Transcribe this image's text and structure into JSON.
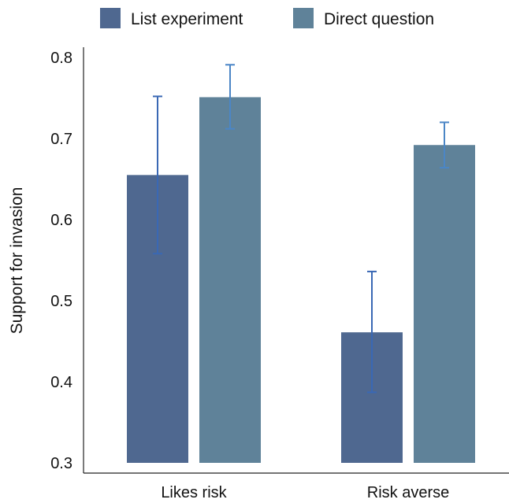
{
  "chart_data": {
    "type": "bar",
    "categories": [
      "Likes risk",
      "Risk averse"
    ],
    "series": [
      {
        "name": "List experiment",
        "color": "#4f6890",
        "values": [
          0.655,
          0.461
        ],
        "error_low": [
          0.558,
          0.387
        ],
        "error_high": [
          0.752,
          0.536
        ]
      },
      {
        "name": "Direct question",
        "color": "#5f8299",
        "values": [
          0.751,
          0.692
        ],
        "error_low": [
          0.712,
          0.664
        ],
        "error_high": [
          0.791,
          0.72
        ]
      }
    ],
    "xlabel": "",
    "ylabel": "Support for invasion",
    "ylim": [
      0.3,
      0.8
    ],
    "yticks": [
      0.3,
      0.4,
      0.5,
      0.6,
      0.7,
      0.8
    ],
    "ytick_labels": [
      "0.3",
      "0.4",
      "0.5",
      "0.6",
      "0.7",
      "0.8"
    ],
    "grid": false,
    "legend_position": "top"
  },
  "style": {
    "errorbar_colors": [
      "#3a68b4",
      "#4b86c6"
    ]
  }
}
